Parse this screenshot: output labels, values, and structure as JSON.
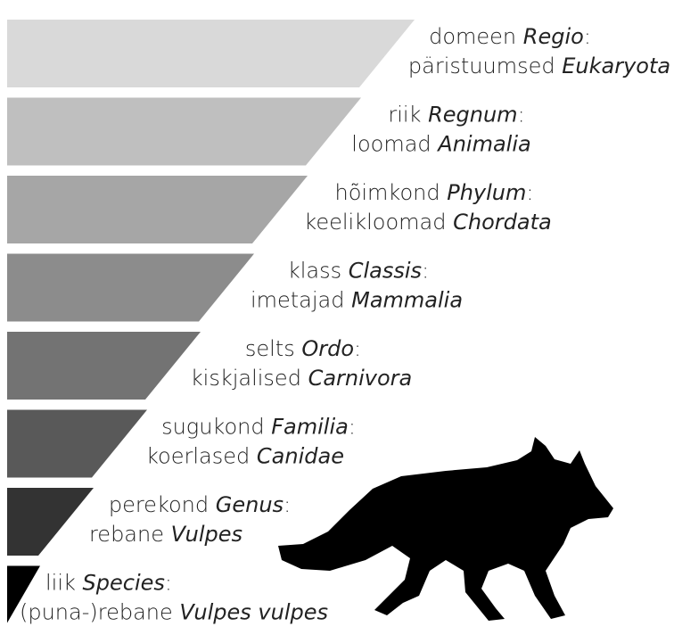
{
  "levels": [
    {
      "rank": "domeen",
      "rank_latin": "Regio",
      "punct": ":",
      "name": "päristuumsed",
      "name_latin": "Eukaryota"
    },
    {
      "rank": "riik",
      "rank_latin": "Regnum",
      "punct": ":",
      "name": "loomad",
      "name_latin": "Animalia"
    },
    {
      "rank": "hõimkond",
      "rank_latin": "Phylum",
      "punct": ":",
      "name": "keelikloomad",
      "name_latin": "Chordata"
    },
    {
      "rank": "klass",
      "rank_latin": "Classis",
      "punct": ":",
      "name": "imetajad",
      "name_latin": "Mammalia"
    },
    {
      "rank": "selts",
      "rank_latin": "Ordo",
      "punct": ":",
      "name": "kiskjalised",
      "name_latin": "Carnivora"
    },
    {
      "rank": "sugukond",
      "rank_latin": "Familia",
      "punct": ":",
      "name": "koerlased",
      "name_latin": "Canidae"
    },
    {
      "rank": "perekond",
      "rank_latin": "Genus",
      "punct": ":",
      "name": "rebane",
      "name_latin": "Vulpes"
    },
    {
      "rank": "liik",
      "rank_latin": "Species",
      "punct": ":",
      "name": "(puna-)rebane",
      "name_latin": "Vulpes vulpes"
    }
  ]
}
